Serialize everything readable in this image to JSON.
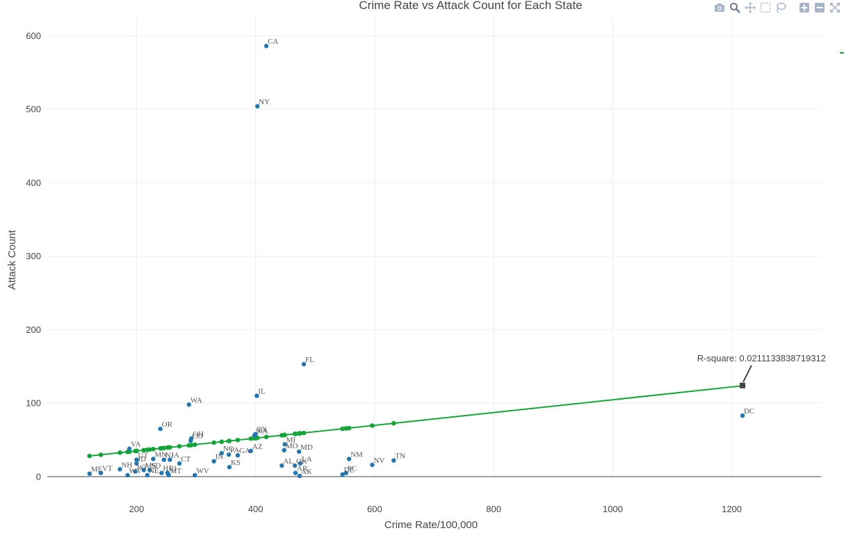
{
  "toolbar": {
    "icons": [
      "camera-icon",
      "zoom-icon",
      "pan-icon",
      "box-select-icon",
      "lasso-select-icon",
      "zoom-in-icon",
      "zoom-out-icon",
      "autoscale-icon"
    ],
    "icon_color": "#a8b4c8",
    "active_color": "#6b7a90"
  },
  "chart_data": {
    "type": "scatter",
    "title": "Crime Rate vs Attack Count for Each State",
    "xlabel": "Crime Rate/100,000",
    "ylabel": "Attack Count",
    "xlim": [
      50,
      1350
    ],
    "ylim": [
      -2,
      625
    ],
    "x_ticks": [
      200,
      400,
      600,
      800,
      1000,
      1200
    ],
    "y_ticks": [
      0,
      100,
      200,
      300,
      400,
      500,
      600
    ],
    "grid": true,
    "legend": "right (partially visible)",
    "colors": {
      "points": "#1f77b4",
      "fit": "#13a538",
      "annotation": "#444444"
    },
    "series": [
      {
        "mode": "markers+text",
        "points": [
          {
            "label": "CA",
            "x": 418,
            "y": 586
          },
          {
            "label": "NY",
            "x": 403,
            "y": 504
          },
          {
            "label": "FL",
            "x": 481,
            "y": 153
          },
          {
            "label": "IL",
            "x": 402,
            "y": 110
          },
          {
            "label": "WA",
            "x": 288,
            "y": 98
          },
          {
            "label": "DC",
            "x": 1218,
            "y": 83
          },
          {
            "label": "OR",
            "x": 240,
            "y": 65
          },
          {
            "label": "TX",
            "x": 400,
            "y": 58
          },
          {
            "label": "MA",
            "x": 398,
            "y": 56
          },
          {
            "label": "OH",
            "x": 292,
            "y": 52
          },
          {
            "label": "CO",
            "x": 291,
            "y": 49
          },
          {
            "label": "MI",
            "x": 449,
            "y": 44
          },
          {
            "label": "VA",
            "x": 188,
            "y": 38
          },
          {
            "label": "MO",
            "x": 448,
            "y": 36
          },
          {
            "label": "AZ",
            "x": 392,
            "y": 35
          },
          {
            "label": "MD",
            "x": 473,
            "y": 34
          },
          {
            "label": "NC",
            "x": 343,
            "y": 32
          },
          {
            "label": "PA",
            "x": 355,
            "y": 30
          },
          {
            "label": "GA",
            "x": 370,
            "y": 29
          },
          {
            "label": "UT",
            "x": 200,
            "y": 23
          },
          {
            "label": "MN",
            "x": 228,
            "y": 24
          },
          {
            "label": "NJ",
            "x": 246,
            "y": 23
          },
          {
            "label": "IA",
            "x": 256,
            "y": 23
          },
          {
            "label": "NM",
            "x": 557,
            "y": 24
          },
          {
            "label": "TN",
            "x": 632,
            "y": 22
          },
          {
            "label": "IN",
            "x": 330,
            "y": 21
          },
          {
            "label": "ID",
            "x": 200,
            "y": 18
          },
          {
            "label": "CT",
            "x": 272,
            "y": 18
          },
          {
            "label": "LA",
            "x": 475,
            "y": 18
          },
          {
            "label": "NV",
            "x": 596,
            "y": 16
          },
          {
            "label": "AL",
            "x": 444,
            "y": 15
          },
          {
            "label": "OK",
            "x": 466,
            "y": 15
          },
          {
            "label": "KS",
            "x": 356,
            "y": 13
          },
          {
            "label": "NH",
            "x": 172,
            "y": 10
          },
          {
            "label": "MS",
            "x": 212,
            "y": 9
          },
          {
            "label": "SD",
            "x": 222,
            "y": 9
          },
          {
            "label": "WI",
            "x": 198,
            "y": 7
          },
          {
            "label": "HI",
            "x": 242,
            "y": 5
          },
          {
            "label": "RI",
            "x": 252,
            "y": 5
          },
          {
            "label": "ME",
            "x": 121,
            "y": 4
          },
          {
            "label": "VT",
            "x": 140,
            "y": 5
          },
          {
            "label": "AR",
            "x": 467,
            "y": 5
          },
          {
            "label": "SC",
            "x": 552,
            "y": 5
          },
          {
            "label": "DE",
            "x": 546,
            "y": 3
          },
          {
            "label": "NE",
            "x": 218,
            "y": 2
          },
          {
            "label": "MT",
            "x": 254,
            "y": 2
          },
          {
            "label": "WV",
            "x": 298,
            "y": 2
          },
          {
            "label": "AK",
            "x": 474,
            "y": 1
          },
          {
            "label": "WY",
            "x": 185,
            "y": 2
          }
        ]
      },
      {
        "mode": "lines+markers",
        "fit": {
          "x0": 121,
          "y0": 28.1,
          "x1": 1218,
          "y1": 123.6
        }
      }
    ],
    "annotations": [
      {
        "text": "R-square: 0.0211133838719312",
        "x": 1218,
        "y": 124
      }
    ]
  }
}
